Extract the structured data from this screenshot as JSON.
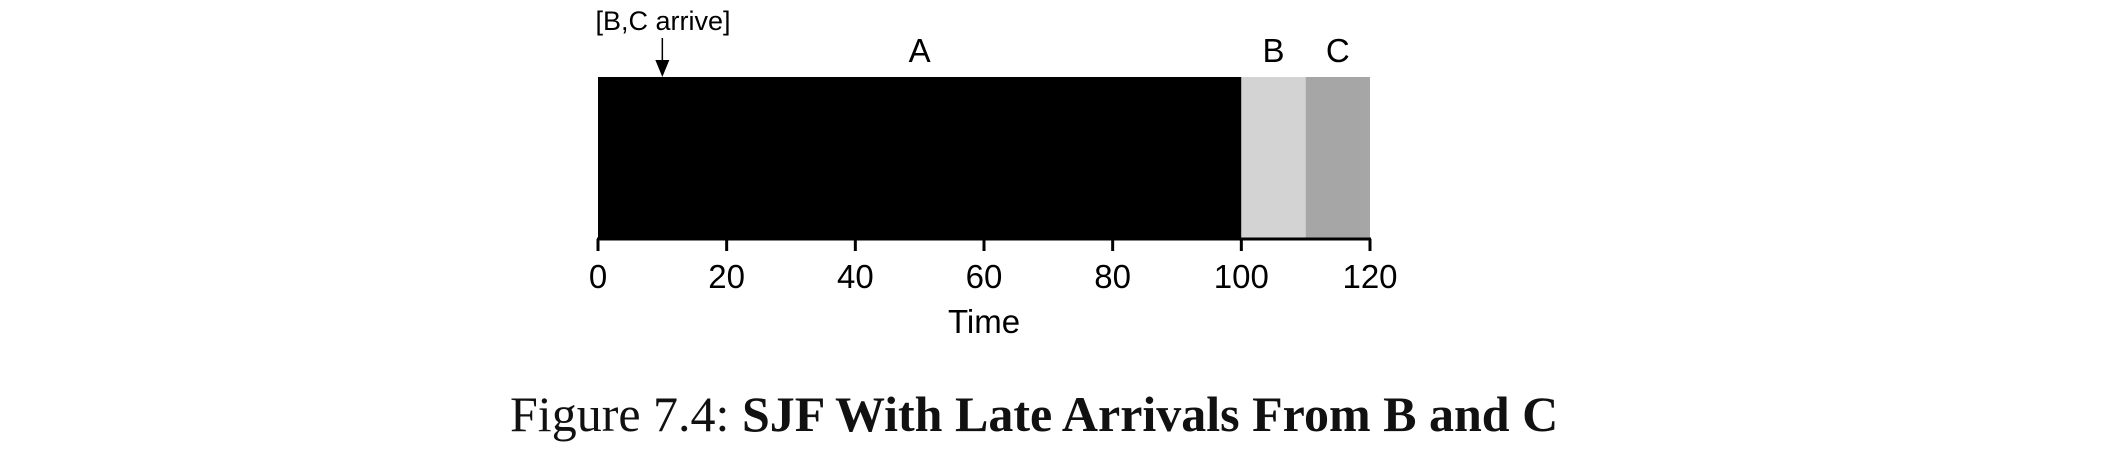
{
  "chart_data": {
    "type": "gantt",
    "jobs": [
      {
        "name": "A",
        "start": 0,
        "end": 100,
        "color": "#000000"
      },
      {
        "name": "B",
        "start": 100,
        "end": 110,
        "color": "#d3d3d3"
      },
      {
        "name": "C",
        "start": 110,
        "end": 120,
        "color": "#a6a6a6"
      }
    ],
    "annotation": {
      "text": "[B,C arrive]",
      "x": 10
    },
    "x_ticks": [
      "0",
      "20",
      "40",
      "60",
      "80",
      "100",
      "120"
    ],
    "xlim": [
      0,
      120
    ],
    "xlabel": "Time"
  },
  "caption": {
    "prefix": "Figure 7.4:",
    "title": "SJF With Late Arrivals From B and C"
  }
}
